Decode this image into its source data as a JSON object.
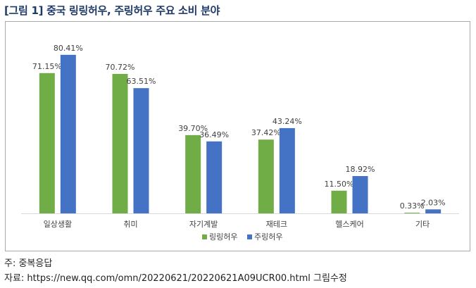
{
  "figure": {
    "title": "[그림 1] 중국 링링허우, 주링허우 주요 소비 분야"
  },
  "chart_data": {
    "type": "bar",
    "categories": [
      "일상생활",
      "취미",
      "자기계발",
      "재테크",
      "헬스케어",
      "기타"
    ],
    "series": [
      {
        "name": "링링허우",
        "color": "#70ad47",
        "values": [
          71.15,
          70.72,
          39.7,
          37.42,
          11.5,
          0.33
        ],
        "labels": [
          "71.15%",
          "70.72%",
          "39.70%",
          "37.42%",
          "11.50%",
          "0.33%"
        ]
      },
      {
        "name": "주링허우",
        "color": "#4472c4",
        "values": [
          80.41,
          63.51,
          36.49,
          43.24,
          18.92,
          2.03
        ],
        "labels": [
          "80.41%",
          "63.51%",
          "36.49%",
          "43.24%",
          "18.92%",
          "2.03%"
        ]
      }
    ],
    "ylim": [
      0,
      90
    ],
    "grid": false,
    "legend_position": "bottom-center"
  },
  "notes": {
    "note": "주: 중복응답",
    "source": "자료: https://new.qq.com/omn/20220621/20220621A09UCR00.html 그림수정"
  }
}
